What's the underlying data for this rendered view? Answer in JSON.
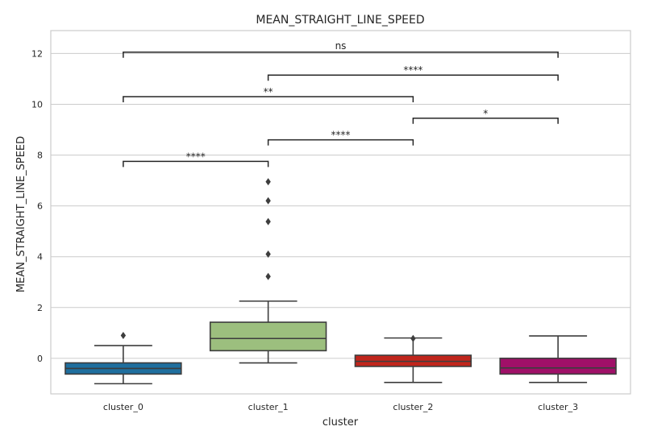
{
  "chart_data": {
    "type": "box",
    "title": "MEAN_STRAIGHT_LINE_SPEED",
    "xlabel": "cluster",
    "ylabel": "MEAN_STRAIGHT_LINE_SPEED",
    "ylim": [
      -1.4,
      12.9
    ],
    "yticks": [
      0,
      2,
      4,
      6,
      8,
      10,
      12
    ],
    "grid": true,
    "categories": [
      "cluster_0",
      "cluster_1",
      "cluster_2",
      "cluster_3"
    ],
    "boxes": [
      {
        "category": "cluster_0",
        "whisker_low": -1.0,
        "q1": -0.62,
        "median": -0.4,
        "q3": -0.18,
        "whisker_high": 0.5,
        "outliers": [
          0.9
        ],
        "color": "#1f6f9f"
      },
      {
        "category": "cluster_1",
        "whisker_low": -0.18,
        "q1": 0.3,
        "median": 0.78,
        "q3": 1.42,
        "whisker_high": 2.25,
        "outliers": [
          3.22,
          4.1,
          5.38,
          6.2,
          6.95
        ],
        "color": "#9cbf7e"
      },
      {
        "category": "cluster_2",
        "whisker_low": -0.95,
        "q1": -0.32,
        "median": -0.12,
        "q3": 0.12,
        "whisker_high": 0.8,
        "outliers": [
          0.78
        ],
        "color": "#c0251c"
      },
      {
        "category": "cluster_3",
        "whisker_low": -0.95,
        "q1": -0.62,
        "median": -0.38,
        "q3": 0.0,
        "whisker_high": 0.88,
        "outliers": [],
        "color": "#a01068"
      }
    ],
    "annotations": [
      {
        "from": 0,
        "to": 1,
        "y": 7.75,
        "label": "****"
      },
      {
        "from": 1,
        "to": 2,
        "y": 8.6,
        "label": "****"
      },
      {
        "from": 2,
        "to": 3,
        "y": 9.45,
        "label": "*"
      },
      {
        "from": 0,
        "to": 2,
        "y": 10.3,
        "label": "**"
      },
      {
        "from": 1,
        "to": 3,
        "y": 11.15,
        "label": "****"
      },
      {
        "from": 0,
        "to": 3,
        "y": 12.05,
        "label": "ns"
      }
    ]
  }
}
